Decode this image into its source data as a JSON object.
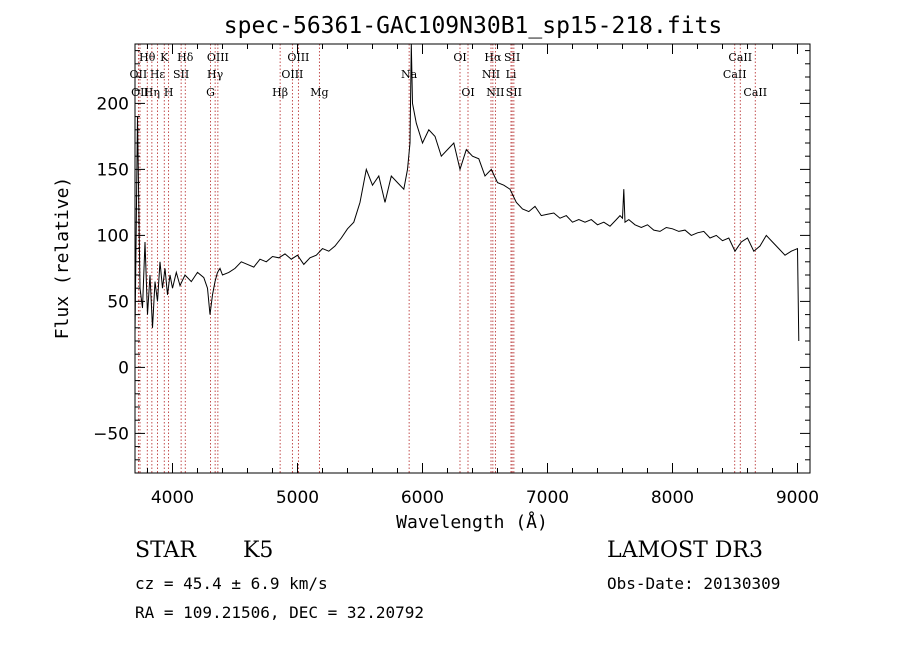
{
  "chart_data": {
    "type": "line",
    "title": "spec-56361-GAC109N30B1_sp15-218.fits",
    "xlabel": "Wavelength (Å)",
    "ylabel": "Flux (relative)",
    "xlim": [
      3700,
      9100
    ],
    "ylim": [
      -80,
      245
    ],
    "xticks": [
      4000,
      5000,
      6000,
      7000,
      8000,
      9000
    ],
    "yticks": [
      -50,
      0,
      50,
      100,
      150,
      200
    ],
    "grid": false,
    "line_color": "#000000",
    "marker_color": "#b22222",
    "spectrum": {
      "x": [
        3700,
        3720,
        3740,
        3760,
        3780,
        3800,
        3820,
        3840,
        3860,
        3880,
        3900,
        3920,
        3940,
        3960,
        3980,
        4000,
        4030,
        4060,
        4100,
        4150,
        4200,
        4250,
        4280,
        4300,
        4320,
        4340,
        4360,
        4380,
        4400,
        4450,
        4500,
        4550,
        4600,
        4650,
        4700,
        4750,
        4800,
        4850,
        4900,
        4950,
        5000,
        5050,
        5100,
        5150,
        5200,
        5250,
        5300,
        5350,
        5400,
        5450,
        5500,
        5550,
        5600,
        5650,
        5700,
        5750,
        5800,
        5850,
        5880,
        5900,
        5910,
        5920,
        5950,
        6000,
        6050,
        6100,
        6150,
        6200,
        6250,
        6300,
        6350,
        6400,
        6450,
        6500,
        6550,
        6600,
        6650,
        6700,
        6750,
        6800,
        6850,
        6900,
        6950,
        7000,
        7050,
        7100,
        7150,
        7200,
        7250,
        7300,
        7350,
        7400,
        7450,
        7500,
        7550,
        7580,
        7600,
        7610,
        7620,
        7650,
        7700,
        7750,
        7800,
        7850,
        7900,
        7950,
        8000,
        8050,
        8100,
        8150,
        8200,
        8250,
        8300,
        8350,
        8400,
        8450,
        8500,
        8550,
        8600,
        8650,
        8700,
        8750,
        8800,
        8850,
        8900,
        8950,
        9000,
        9010
      ],
      "y": [
        25,
        190,
        60,
        45,
        95,
        40,
        70,
        30,
        65,
        50,
        80,
        60,
        75,
        55,
        70,
        60,
        72,
        62,
        70,
        65,
        72,
        68,
        60,
        40,
        55,
        65,
        72,
        75,
        70,
        72,
        75,
        80,
        78,
        76,
        82,
        80,
        84,
        83,
        86,
        82,
        85,
        78,
        83,
        85,
        90,
        88,
        92,
        98,
        105,
        110,
        125,
        150,
        138,
        145,
        125,
        145,
        140,
        135,
        150,
        170,
        245,
        200,
        185,
        170,
        180,
        175,
        160,
        165,
        170,
        150,
        165,
        160,
        158,
        145,
        150,
        140,
        138,
        135,
        125,
        120,
        118,
        122,
        115,
        116,
        117,
        113,
        115,
        110,
        112,
        110,
        112,
        108,
        110,
        107,
        112,
        115,
        113,
        135,
        110,
        112,
        108,
        106,
        108,
        104,
        103,
        106,
        105,
        103,
        104,
        100,
        102,
        103,
        98,
        100,
        96,
        98,
        88,
        95,
        98,
        88,
        92,
        100,
        95,
        90,
        85,
        88,
        90,
        20
      ]
    },
    "line_markers": [
      {
        "label": "Hθ",
        "x": 3798,
        "row": 1
      },
      {
        "label": "OII",
        "x": 3727,
        "row": 2
      },
      {
        "label": "OII",
        "x": 3740,
        "row": 3
      },
      {
        "label": "K",
        "x": 3934,
        "row": 1
      },
      {
        "label": "Hε",
        "x": 3880,
        "row": 2
      },
      {
        "label": "Hη",
        "x": 3835,
        "row": 3
      },
      {
        "label": "H",
        "x": 3969,
        "row": 3
      },
      {
        "label": "Hδ",
        "x": 4102,
        "row": 1
      },
      {
        "label": "SII",
        "x": 4069,
        "row": 2
      },
      {
        "label": "OIII",
        "x": 4363,
        "row": 1
      },
      {
        "label": "Hγ",
        "x": 4341,
        "row": 2
      },
      {
        "label": "G",
        "x": 4304,
        "row": 3
      },
      {
        "label": "OIII",
        "x": 5007,
        "row": 1
      },
      {
        "label": "OIII",
        "x": 4959,
        "row": 2
      },
      {
        "label": "Hβ",
        "x": 4861,
        "row": 3
      },
      {
        "label": "Mg",
        "x": 5175,
        "row": 3
      },
      {
        "label": "Na",
        "x": 5893,
        "row": 2
      },
      {
        "label": "OI",
        "x": 6300,
        "row": 1
      },
      {
        "label": "OI",
        "x": 6364,
        "row": 3
      },
      {
        "label": "Hα",
        "x": 6563,
        "row": 1
      },
      {
        "label": "SII",
        "x": 6717,
        "row": 1
      },
      {
        "label": "NII",
        "x": 6548,
        "row": 2
      },
      {
        "label": "Li",
        "x": 6708,
        "row": 2
      },
      {
        "label": "NII",
        "x": 6583,
        "row": 3
      },
      {
        "label": "SII",
        "x": 6731,
        "row": 3
      },
      {
        "label": "CaII",
        "x": 8542,
        "row": 1
      },
      {
        "label": "CaII",
        "x": 8498,
        "row": 2
      },
      {
        "label": "CaII",
        "x": 8662,
        "row": 3
      }
    ]
  },
  "info": {
    "object_class": "STAR",
    "subclass": "K5",
    "cz": "cz = 45.4 ± 6.9 km/s",
    "coords": "RA = 109.21506, DEC =  32.20792",
    "survey": "LAMOST DR3",
    "obs_date": "Obs-Date: 20130309"
  }
}
